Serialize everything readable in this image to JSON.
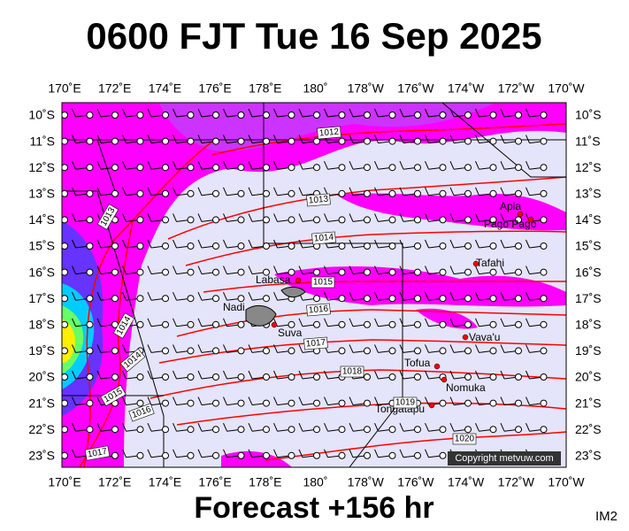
{
  "title": "0600 FJT Tue 16 Sep 2025",
  "longitude_labels": [
    "170˚E",
    "172˚E",
    "174˚E",
    "176˚E",
    "178˚E",
    "180˚",
    "178˚W",
    "176˚W",
    "174˚W",
    "172˚W",
    "170˚W"
  ],
  "latitude_labels": [
    "10˚S",
    "11˚S",
    "12˚S",
    "13˚S",
    "14˚S",
    "15˚S",
    "16˚S",
    "17˚S",
    "18˚S",
    "19˚S",
    "20˚S",
    "21˚S",
    "22˚S",
    "23˚S"
  ],
  "places": [
    "Apia",
    "Pago Pago",
    "Tafahi",
    "Labasa",
    "Nadi",
    "Suva",
    "Vava'u",
    "Tofua",
    "Nomuka",
    "Tongatapu"
  ],
  "isobar_labels": [
    "1012",
    "1013",
    "1014",
    "1015",
    "1016",
    "1017",
    "1018",
    "1019",
    "1020",
    "1013",
    "1014",
    "1014",
    "1015",
    "1016",
    "1017"
  ],
  "footer": "Forecast +156 hr",
  "copyright": "Copyright metvuw.com",
  "corner_label": "IM2"
}
